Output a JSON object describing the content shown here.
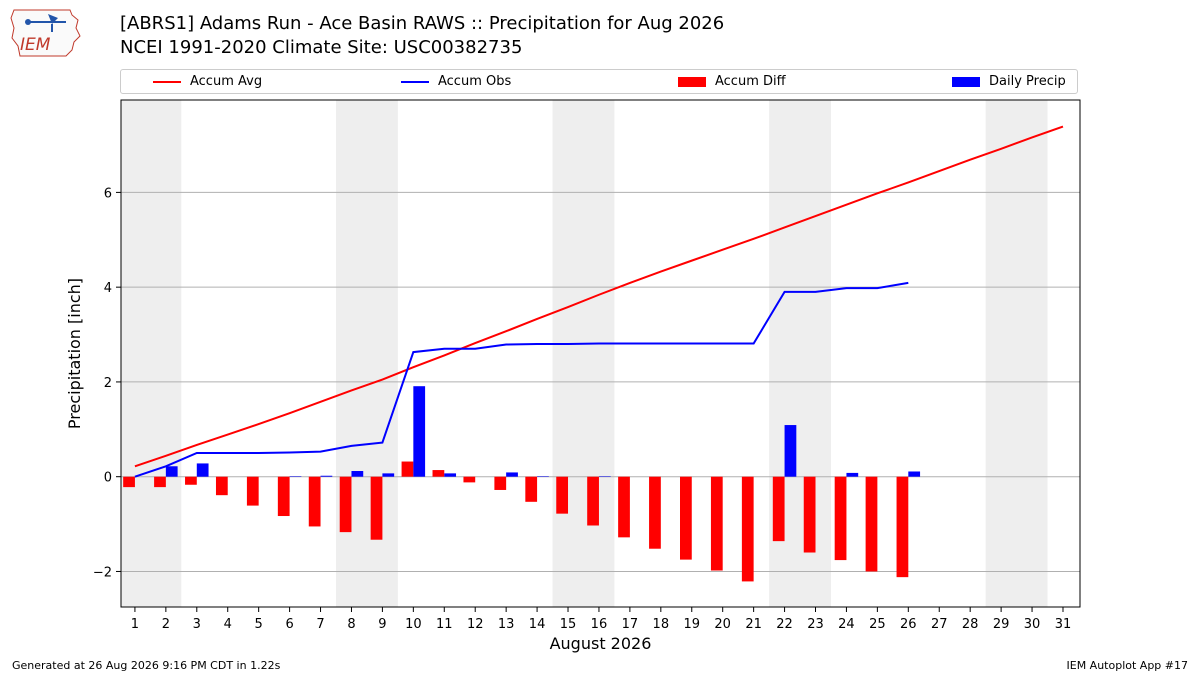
{
  "header": {
    "title_line1": "[ABRS1] Adams Run - Ace Basin RAWS :: Precipitation for Aug 2026",
    "title_line2": "NCEI 1991-2020 Climate Site: USC00382735",
    "logo_text": "IEM"
  },
  "footer": {
    "generated": "Generated at 26 Aug 2026 9:16 PM CDT in 1.22s",
    "app": "IEM Autoplot App #17"
  },
  "colors": {
    "accum_avg": "#ff0000",
    "accum_obs": "#0000ff",
    "accum_diff": "#ff0000",
    "daily_precip": "#0000ff",
    "weekend_shade": "#eeeeee",
    "grid": "#b0b0b0"
  },
  "chart_data": {
    "type": "bar",
    "xlabel": "August 2026",
    "ylabel": "Precipitation [inch]",
    "x_ticks": [
      "1",
      "2",
      "3",
      "4",
      "5",
      "6",
      "7",
      "8",
      "9",
      "10",
      "11",
      "12",
      "13",
      "14",
      "15",
      "16",
      "17",
      "18",
      "19",
      "20",
      "21",
      "22",
      "23",
      "24",
      "25",
      "26",
      "27",
      "28",
      "29",
      "30",
      "31"
    ],
    "xlim": [
      0.55,
      31.55
    ],
    "ylim": [
      -2.75,
      7.95
    ],
    "y_ticks": [
      -2,
      0,
      2,
      4,
      6
    ],
    "grid": "horizontal",
    "shaded_days": [
      [
        0.55,
        2.5
      ],
      [
        7.5,
        9.5
      ],
      [
        14.5,
        16.5
      ],
      [
        21.5,
        23.5
      ],
      [
        28.5,
        30.5
      ]
    ],
    "legend": {
      "placement": "top",
      "items": [
        {
          "label": "Accum Avg",
          "kind": "line",
          "color": "#ff0000"
        },
        {
          "label": "Accum Obs",
          "kind": "line",
          "color": "#0000ff"
        },
        {
          "label": "Accum Diff",
          "kind": "bar",
          "color": "#ff0000"
        },
        {
          "label": "Daily Precip",
          "kind": "bar",
          "color": "#0000ff"
        }
      ]
    },
    "series": [
      {
        "name": "Accum Avg",
        "kind": "line",
        "days": [
          1,
          2,
          3,
          4,
          5,
          6,
          7,
          8,
          9,
          10,
          11,
          12,
          13,
          14,
          15,
          16,
          17,
          18,
          19,
          20,
          21,
          22,
          23,
          24,
          25,
          26,
          27,
          28,
          29,
          30,
          31
        ],
        "values": [
          0.22,
          0.44,
          0.67,
          0.89,
          1.11,
          1.34,
          1.58,
          1.82,
          2.05,
          2.31,
          2.56,
          2.82,
          3.07,
          3.33,
          3.58,
          3.84,
          4.09,
          4.33,
          4.56,
          4.79,
          5.02,
          5.26,
          5.5,
          5.74,
          5.98,
          6.21,
          6.45,
          6.69,
          6.92,
          7.16,
          7.39
        ]
      },
      {
        "name": "Accum Obs",
        "kind": "line",
        "days": [
          1,
          2,
          3,
          4,
          5,
          6,
          7,
          8,
          9,
          10,
          11,
          12,
          13,
          14,
          15,
          16,
          17,
          18,
          19,
          20,
          21,
          22,
          23,
          24,
          25,
          26
        ],
        "values": [
          0.0,
          0.22,
          0.5,
          0.5,
          0.5,
          0.51,
          0.53,
          0.65,
          0.72,
          2.63,
          2.7,
          2.7,
          2.79,
          2.8,
          2.8,
          2.81,
          2.81,
          2.81,
          2.81,
          2.81,
          2.81,
          3.9,
          3.9,
          3.98,
          3.98,
          4.09
        ]
      },
      {
        "name": "Accum Diff",
        "kind": "bar",
        "days": [
          1,
          2,
          3,
          4,
          5,
          6,
          7,
          8,
          9,
          10,
          11,
          12,
          13,
          14,
          15,
          16,
          17,
          18,
          19,
          20,
          21,
          22,
          23,
          24,
          25,
          26
        ],
        "values": [
          -0.22,
          -0.22,
          -0.17,
          -0.39,
          -0.61,
          -0.83,
          -1.05,
          -1.17,
          -1.33,
          0.32,
          0.14,
          -0.12,
          -0.28,
          -0.53,
          -0.78,
          -1.03,
          -1.28,
          -1.52,
          -1.75,
          -1.98,
          -2.21,
          -1.36,
          -1.6,
          -1.76,
          -2.0,
          -2.12
        ]
      },
      {
        "name": "Daily Precip",
        "kind": "bar",
        "days": [
          1,
          2,
          3,
          4,
          5,
          6,
          7,
          8,
          9,
          10,
          11,
          12,
          13,
          14,
          15,
          16,
          17,
          18,
          19,
          20,
          21,
          22,
          23,
          24,
          25,
          26
        ],
        "values": [
          0.0,
          0.22,
          0.28,
          0.0,
          0.0,
          0.01,
          0.02,
          0.12,
          0.07,
          1.91,
          0.07,
          0.0,
          0.09,
          0.01,
          0.0,
          0.01,
          0.0,
          0.0,
          0.0,
          0.0,
          0.0,
          1.09,
          0.0,
          0.08,
          0.0,
          0.11
        ]
      }
    ]
  }
}
